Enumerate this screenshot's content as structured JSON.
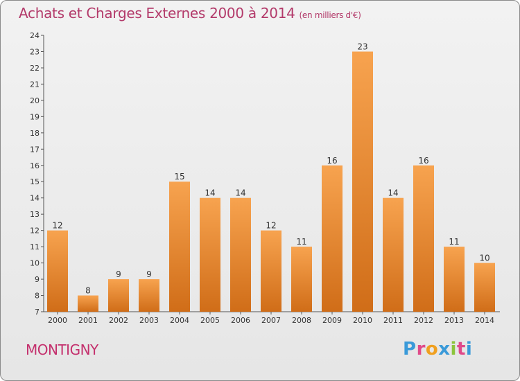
{
  "title": "Achats et Charges Externes 2000 à 2014",
  "subtitle": "(en milliers d'€)",
  "commune": "MONTIGNY",
  "logo": "Proxiti",
  "colors": {
    "bar_top": "#f7a34f",
    "bar_bottom": "#d06d18",
    "title": "#b33a6a",
    "commune": "#c4306d",
    "logo_P": "#3a9ad9",
    "logo_r": "#e04a8a",
    "logo_o": "#f0a020",
    "logo_x": "#3a9ad9",
    "logo_i": "#8cc43c",
    "logo_t": "#e04a8a",
    "logo_i2": "#3a9ad9"
  },
  "chart_data": {
    "type": "bar",
    "categories": [
      "2000",
      "2001",
      "2002",
      "2003",
      "2004",
      "2005",
      "2006",
      "2007",
      "2008",
      "2009",
      "2010",
      "2011",
      "2012",
      "2013",
      "2014"
    ],
    "values": [
      12,
      8,
      9,
      9,
      15,
      14,
      14,
      12,
      11,
      16,
      23,
      14,
      16,
      11,
      10
    ],
    "ylim": [
      7,
      24
    ],
    "yticks": [
      7,
      8,
      9,
      10,
      11,
      12,
      13,
      14,
      15,
      16,
      17,
      18,
      19,
      20,
      21,
      22,
      23,
      24
    ],
    "grid": false,
    "legend": "none"
  }
}
